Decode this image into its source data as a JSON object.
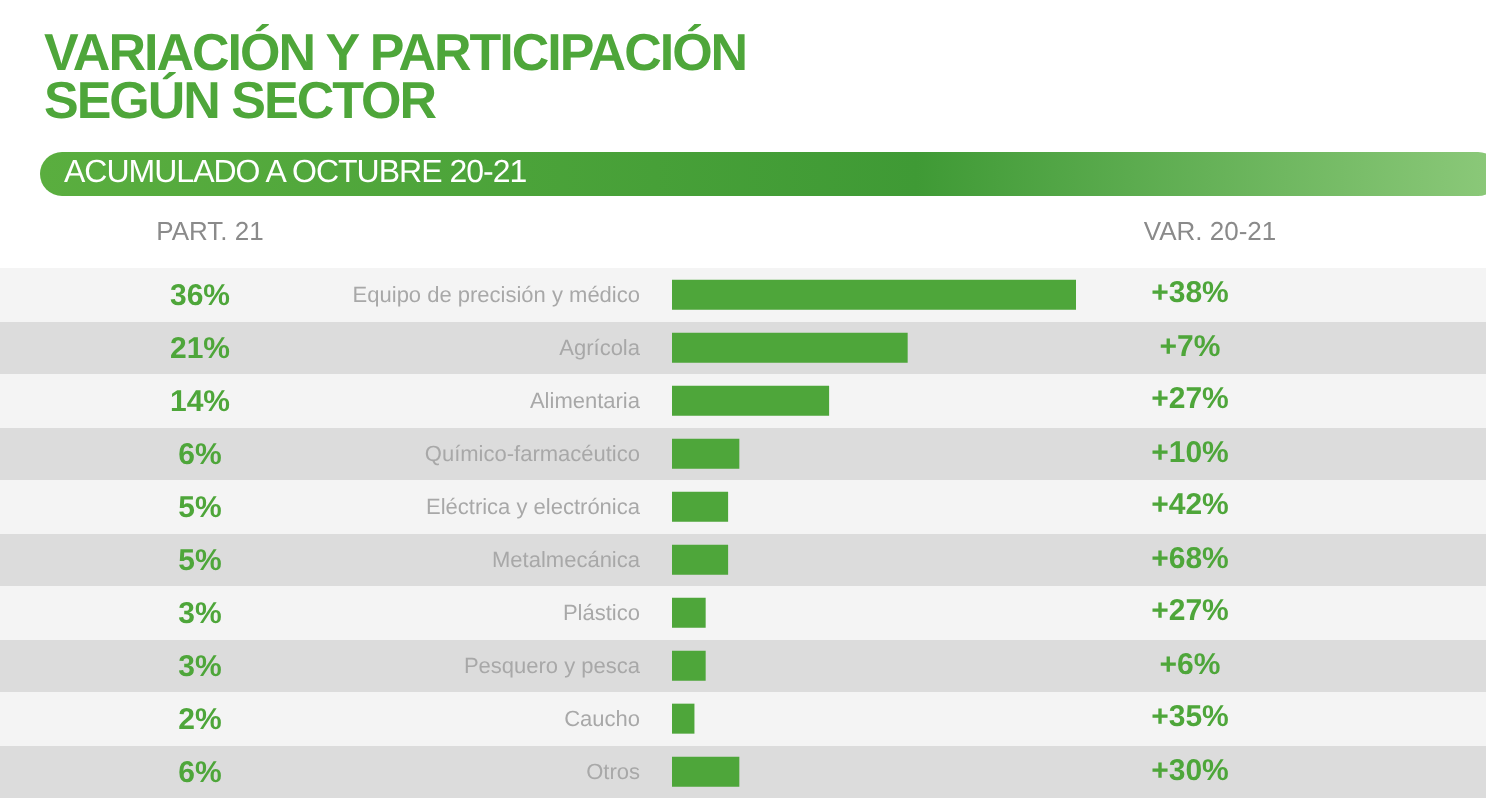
{
  "chart_data": {
    "type": "bar",
    "orientation": "horizontal",
    "title": "VARIACIÓN Y PARTICIPACIÓN SEGÚN SECTOR",
    "subtitle": "ACUMULADO A OCTUBRE 20-21",
    "categories": [
      "Equipo de precisión y médico",
      "Agrícola",
      "Alimentaria",
      "Químico-farmacéutico",
      "Eléctrica y electrónica",
      "Metalmecánica",
      "Plástico",
      "Pesquero y pesca",
      "Caucho",
      "Otros"
    ],
    "values": [
      36,
      21,
      14,
      6,
      5,
      5,
      3,
      3,
      2,
      6
    ],
    "value_labels": [
      "36%",
      "21%",
      "14%",
      "6%",
      "5%",
      "5%",
      "3%",
      "3%",
      "2%",
      "6%"
    ],
    "color": "#4ea63a",
    "xlim": [
      0,
      36
    ],
    "tick_labels": "y",
    "grid": false,
    "legend": false,
    "annotations": [
      "PART. 21",
      "VAR. 20-21",
      "+38%",
      "+7%",
      "+27%",
      "+10%",
      "+42%",
      "+68%",
      "+27%",
      "+6%",
      "+35%",
      "+30%"
    ]
  }
}
